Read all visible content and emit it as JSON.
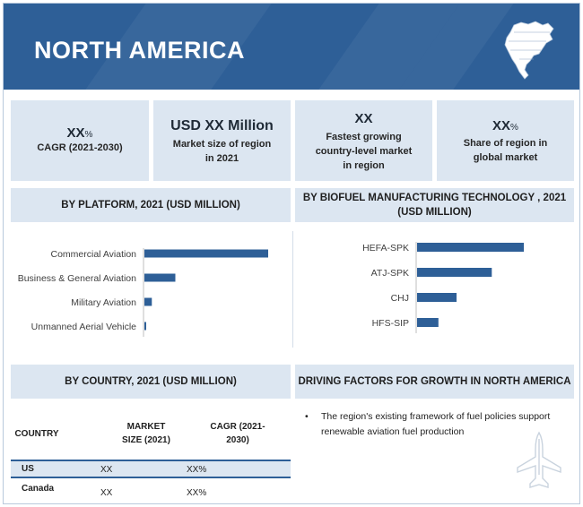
{
  "header": {
    "title": "NORTH AMERICA"
  },
  "kpis": [
    {
      "value": "XX",
      "suffix": "%",
      "desc": "CAGR (2021-2030)"
    },
    {
      "value": "USD XX Million",
      "suffix": "",
      "desc": "Market size of region in 2021"
    },
    {
      "value": "XX",
      "suffix": "",
      "desc": "Fastest growing country-level market in region"
    },
    {
      "value": "XX",
      "suffix": "%",
      "desc": "Share of region in global market"
    }
  ],
  "sections": {
    "platform": "BY PLATFORM, 2021 (USD MILLION)",
    "technology": "BY BIOFUEL MANUFACTURING TECHNOLOGY , 2021 (USD MILLION)",
    "country": "BY COUNTRY, 2021 (USD MILLION)",
    "drivers": "DRIVING FACTORS FOR GROWTH IN NORTH AMERICA"
  },
  "chart_data": [
    {
      "type": "bar",
      "orientation": "horizontal",
      "title": "BY PLATFORM, 2021 (USD MILLION)",
      "categories": [
        "Commercial Aviation",
        "Business & General Aviation",
        "Military Aviation",
        "Unmanned Aerial Vehicle"
      ],
      "values": [
        100,
        25,
        6,
        1
      ],
      "value_axis_shown": false
    },
    {
      "type": "bar",
      "orientation": "horizontal",
      "title": "BY BIOFUEL MANUFACTURING TECHNOLOGY , 2021 (USD MILLION)",
      "categories": [
        "HEFA-SPK",
        "ATJ-SPK",
        "CHJ",
        "HFS-SIP"
      ],
      "values": [
        100,
        70,
        37,
        20
      ],
      "value_axis_shown": false
    }
  ],
  "country_table": {
    "headers": {
      "country": "COUNTRY",
      "market_size": "MARKET SIZE (2021)",
      "cagr": "CAGR (2021-2030)"
    },
    "rows": [
      {
        "country": "US",
        "market_size": "XX",
        "cagr": "XX%"
      },
      {
        "country": "Canada",
        "market_size": "XX",
        "cagr": "XX%"
      }
    ]
  },
  "drivers": [
    "The region's existing framework of fuel policies support renewable aviation fuel production"
  ],
  "colors": {
    "banner": "#2e5f97",
    "panel": "#dce6f1",
    "bar": "#2e5f97"
  },
  "icons": {
    "map": "north-america-map-icon",
    "aircraft": "aircraft-icon"
  }
}
